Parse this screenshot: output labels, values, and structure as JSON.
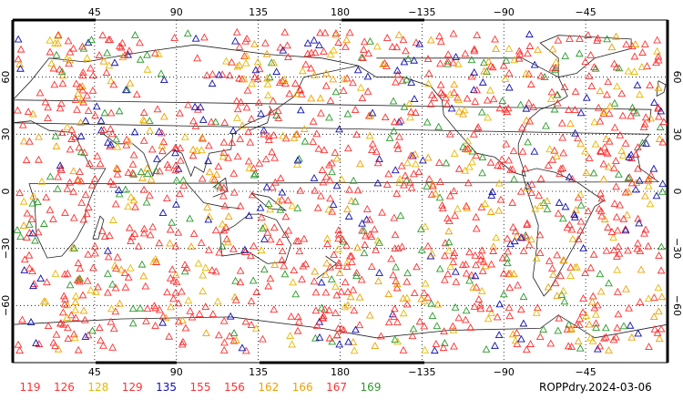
{
  "title_caption": "ROPPdry.2024-03-06",
  "lon_ticks": [
    {
      "lon": 45,
      "label": "45"
    },
    {
      "lon": 90,
      "label": "90"
    },
    {
      "lon": 135,
      "label": "135"
    },
    {
      "lon": 180,
      "label": "180"
    },
    {
      "lon": 225,
      "label": "−135"
    },
    {
      "lon": 270,
      "label": "−90"
    },
    {
      "lon": 315,
      "label": "−45"
    }
  ],
  "lat_ticks": [
    {
      "lat": 60,
      "label": "60"
    },
    {
      "lat": 30,
      "label": "30"
    },
    {
      "lat": 0,
      "label": "0"
    },
    {
      "lat": -30,
      "label": "−30"
    },
    {
      "lat": -60,
      "label": "−60"
    }
  ],
  "legend": [
    {
      "label": "119",
      "color": "#ff3030"
    },
    {
      "label": "126",
      "color": "#ff3030"
    },
    {
      "label": "128",
      "color": "#e8b800"
    },
    {
      "label": "129",
      "color": "#ff3030"
    },
    {
      "label": "135",
      "color": "#1010b0"
    },
    {
      "label": "155",
      "color": "#ff3030"
    },
    {
      "label": "156",
      "color": "#ff3030"
    },
    {
      "label": "162",
      "color": "#f0a000"
    },
    {
      "label": "166",
      "color": "#f0a000"
    },
    {
      "label": "167",
      "color": "#ff3030"
    },
    {
      "label": "169",
      "color": "#2a9a2a"
    }
  ],
  "map": {
    "lon_range": [
      0,
      360
    ],
    "lat_range": [
      -90,
      90
    ],
    "projection": "cylindrical",
    "grid": "dotted",
    "marker": "triangle",
    "coastline_color": "#000000"
  },
  "colors": {
    "red": "#ff3030",
    "blue": "#1010b0",
    "green": "#2a9a2a",
    "orange": "#f0a000",
    "yellow": "#e8b800",
    "grid": "#000000"
  }
}
